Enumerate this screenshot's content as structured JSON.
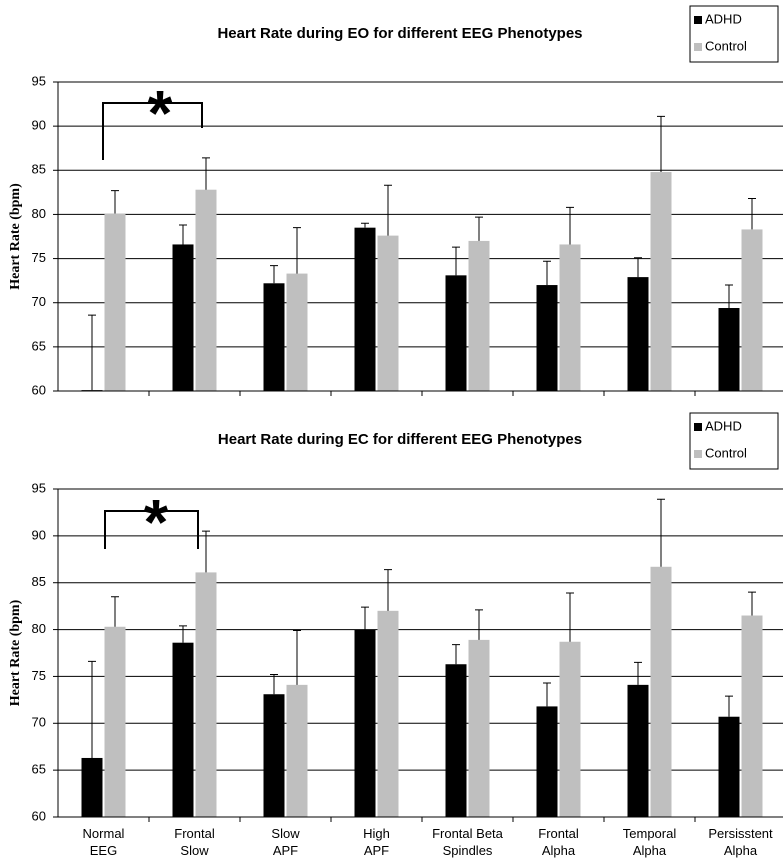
{
  "chart_data": [
    {
      "type": "bar",
      "title": "Heart Rate during EO for different EEG Phenotypes",
      "y_label": "Heart Rate (bpm)",
      "categories": [
        null,
        null,
        null,
        null,
        null,
        null,
        null,
        null
      ],
      "series": [
        {
          "name": "ADHD",
          "color": "#000000",
          "values": [
            60.1,
            76.6,
            72.2,
            78.5,
            73.1,
            72.0,
            72.9,
            69.4
          ],
          "errors": [
            8.5,
            2.2,
            2.0,
            0.5,
            3.2,
            2.7,
            2.2,
            2.6
          ]
        },
        {
          "name": "Control",
          "color": "#bfbfbf",
          "values": [
            80.1,
            82.8,
            73.3,
            77.6,
            77.0,
            76.6,
            84.8,
            78.3
          ],
          "errors": [
            2.6,
            3.6,
            5.2,
            5.7,
            2.7,
            4.2,
            6.3,
            3.5
          ]
        }
      ],
      "ylim": [
        60,
        95
      ],
      "yticks": [
        60,
        65,
        70,
        75,
        80,
        85,
        90,
        95
      ],
      "grid": true,
      "legend": "top-right",
      "annotation": "*"
    },
    {
      "type": "bar",
      "title": "Heart Rate during EC for different EEG Phenotypes",
      "y_label": "Heart Rate (bpm)",
      "categories": [
        "Normal EEG",
        "Frontal Slow",
        "Slow APF",
        "High APF",
        "Frontal Beta Spindles",
        "Frontal Alpha",
        "Temporal Alpha",
        "Persisstent Alpha"
      ],
      "series": [
        {
          "name": "ADHD",
          "color": "#000000",
          "values": [
            66.3,
            78.6,
            73.1,
            80.0,
            76.3,
            71.8,
            74.1,
            70.7
          ],
          "errors": [
            10.3,
            1.8,
            2.1,
            2.4,
            2.1,
            2.5,
            2.4,
            2.2
          ]
        },
        {
          "name": "Control",
          "color": "#bfbfbf",
          "values": [
            80.3,
            86.1,
            74.1,
            82.0,
            78.9,
            78.7,
            86.7,
            81.5
          ],
          "errors": [
            3.2,
            4.4,
            5.8,
            4.4,
            3.2,
            5.2,
            7.2,
            2.5
          ]
        }
      ],
      "ylim": [
        60,
        95
      ],
      "yticks": [
        60,
        65,
        70,
        75,
        80,
        85,
        90,
        95
      ],
      "grid": true,
      "legend": "top-right",
      "annotation": "*"
    }
  ]
}
